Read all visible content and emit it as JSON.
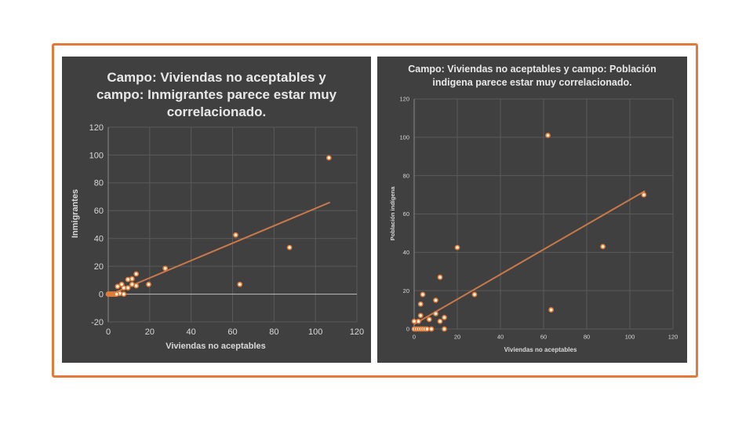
{
  "colors": {
    "background": "#404040",
    "frame": "#e07b39",
    "marker": "#f4a261",
    "trendline": "#c8784a",
    "grid": "#5a5a5a",
    "text": "#d9d9d9"
  },
  "chart_data": [
    {
      "type": "scatter",
      "title": "Campo: Viviendas no aceptables y campo: Inmigrantes parece estar muy correlacionado.",
      "xlabel": "Viviendas no aceptables",
      "ylabel": "Inmigrantes",
      "xlim": [
        0,
        120
      ],
      "ylim": [
        -20,
        120
      ],
      "xticks": [
        0,
        20,
        40,
        60,
        80,
        100,
        120
      ],
      "yticks": [
        -20,
        0,
        20,
        40,
        60,
        80,
        100,
        120
      ],
      "grid": true,
      "points": [
        [
          106.5,
          98
        ],
        [
          61.5,
          42.5
        ],
        [
          87.5,
          33.5
        ],
        [
          63.5,
          7
        ],
        [
          27.5,
          18.5
        ],
        [
          19.5,
          7
        ],
        [
          13.5,
          14.5
        ],
        [
          13.5,
          6
        ],
        [
          11.5,
          11
        ],
        [
          11.5,
          7
        ],
        [
          9.5,
          10.5
        ],
        [
          9.5,
          4.5
        ],
        [
          7.5,
          4.5
        ],
        [
          6.5,
          7
        ],
        [
          4.5,
          5.5
        ],
        [
          5.5,
          0.5
        ],
        [
          7.5,
          0
        ],
        [
          0,
          0
        ],
        [
          0.5,
          0
        ],
        [
          1,
          0
        ],
        [
          1.5,
          0
        ],
        [
          2,
          0
        ],
        [
          2.5,
          0
        ],
        [
          3,
          0
        ],
        [
          3.5,
          0
        ],
        [
          4,
          0
        ]
      ],
      "trendline": {
        "x": [
          3,
          107
        ],
        "y": [
          1,
          66
        ]
      }
    },
    {
      "type": "scatter",
      "title": "Campo: Viviendas no aceptables y campo: Población indigena parece estar muy correlacionado.",
      "xlabel": "Viviendas no aceptables",
      "ylabel": "Población indígena",
      "xlim": [
        0,
        120
      ],
      "ylim": [
        0,
        120
      ],
      "xticks": [
        0,
        20,
        40,
        60,
        80,
        100,
        120
      ],
      "yticks": [
        0,
        20,
        40,
        60,
        80,
        100,
        120
      ],
      "grid": true,
      "points": [
        [
          62,
          101
        ],
        [
          106.5,
          70
        ],
        [
          87.5,
          43
        ],
        [
          20,
          42.5
        ],
        [
          12,
          27
        ],
        [
          28,
          18
        ],
        [
          63.5,
          10
        ],
        [
          4,
          18
        ],
        [
          3,
          13
        ],
        [
          10,
          15
        ],
        [
          3,
          7
        ],
        [
          10,
          8
        ],
        [
          7,
          5
        ],
        [
          14,
          6
        ],
        [
          12,
          4
        ],
        [
          2,
          4
        ],
        [
          0,
          4
        ],
        [
          14,
          0
        ],
        [
          0,
          0
        ],
        [
          1,
          0
        ],
        [
          2,
          0
        ],
        [
          3,
          0
        ],
        [
          4,
          0
        ],
        [
          5,
          0
        ],
        [
          6,
          0
        ],
        [
          8,
          0
        ]
      ],
      "trendline": {
        "x": [
          0,
          107
        ],
        "y": [
          2.5,
          72
        ]
      }
    }
  ]
}
